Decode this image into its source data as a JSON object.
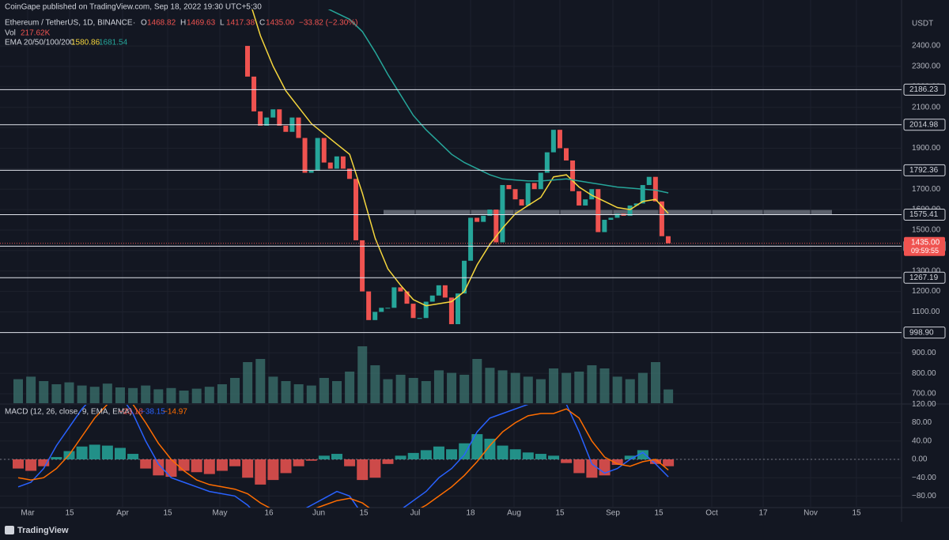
{
  "header": {
    "published": "CoinGape published on TradingView.com, Sep 18, 2022 19:30 UTC+5:30",
    "symbol": "Ethereum / TetherUS, 1D, BINANCE",
    "ohlc": [
      {
        "label": "O",
        "value": "1468.82"
      },
      {
        "label": "H",
        "value": "1469.63"
      },
      {
        "label": "L",
        "value": "1417.38"
      },
      {
        "label": "C",
        "value": "1435.00"
      }
    ],
    "change": "−33.82 (−2.30%)",
    "volume_label": "Vol",
    "volume_value": "217.62K",
    "ema_label": "EMA 20/50/100/200",
    "ema_values": [
      "1580.86",
      "1681.54"
    ]
  },
  "chart_data": {
    "type": "candlestick",
    "unit": "USDT",
    "ylim": [
      700,
      2578
    ],
    "yticks": [
      {
        "value": 700,
        "label": "700.00"
      },
      {
        "value": 800,
        "label": "800.00"
      },
      {
        "value": 900,
        "label": "900.00"
      },
      {
        "value": 1000,
        "label": "1000.00"
      },
      {
        "value": 1100,
        "label": "1100.00"
      },
      {
        "value": 1200,
        "label": "1200.00"
      },
      {
        "value": 1300,
        "label": "1300.00"
      },
      {
        "value": 1400,
        "label": "1400.00"
      },
      {
        "value": 1500,
        "label": "1500.00"
      },
      {
        "value": 1600,
        "label": "1600.00"
      },
      {
        "value": 1700,
        "label": "1700.00"
      },
      {
        "value": 1800,
        "label": "1800.00"
      },
      {
        "value": 1900,
        "label": "1900.00"
      },
      {
        "value": 2000,
        "label": "2000.00"
      },
      {
        "value": 2100,
        "label": "2100.00"
      },
      {
        "value": 2200,
        "label": "2200.00"
      },
      {
        "value": 2300,
        "label": "2300.00"
      },
      {
        "value": 2400,
        "label": "2400.00"
      }
    ],
    "levels": [
      2186.23,
      2014.98,
      1792.36,
      1575.41,
      1421.32,
      1267.19,
      {
        "value": 998.9,
        "label": "998.90"
      }
    ],
    "last_price": {
      "value": 1435,
      "label": "1435.00"
    },
    "countdown": "09:59:55",
    "up_color": "#26a69a",
    "down_color": "#ef5350",
    "open": [
      2400,
      2250,
      2080,
      2010,
      2050,
      2090,
      2010,
      1980,
      2050,
      1950,
      1780,
      1790,
      1950,
      1830,
      1800,
      1860,
      1800,
      1750,
      1450,
      1200,
      1060,
      1100,
      1120,
      1120,
      1220,
      1200,
      1140,
      1070,
      1070,
      1150,
      1180,
      1230,
      1170,
      1040,
      1190,
      1350,
      1560,
      1540,
      1570,
      1600,
      1440,
      1720,
      1700,
      1650,
      1620,
      1730,
      1700,
      1780,
      1880,
      1990,
      1900,
      1840,
      1690,
      1620,
      1650,
      1700,
      1490,
      1550,
      1560,
      1580,
      1570,
      1620,
      1630,
      1720,
      1760,
      1640,
      1470
    ],
    "close": [
      2250,
      2080,
      2010,
      2050,
      2090,
      2010,
      1980,
      2050,
      1950,
      1780,
      1790,
      1950,
      1830,
      1800,
      1860,
      1800,
      1750,
      1450,
      1200,
      1060,
      1100,
      1120,
      1120,
      1220,
      1200,
      1140,
      1070,
      1070,
      1150,
      1180,
      1230,
      1170,
      1040,
      1190,
      1350,
      1560,
      1540,
      1570,
      1600,
      1440,
      1720,
      1700,
      1650,
      1620,
      1730,
      1700,
      1780,
      1880,
      1990,
      1900,
      1840,
      1690,
      1620,
      1650,
      1700,
      1490,
      1550,
      1560,
      1580,
      1570,
      1620,
      1630,
      1720,
      1760,
      1640,
      1470,
      1435
    ],
    "x_labels": [
      "Mar",
      "15",
      "Apr",
      "15",
      "May",
      "16",
      "Jun",
      "15",
      "Jul",
      "18",
      "Aug",
      "15",
      "Sep",
      "15",
      "Oct",
      "17",
      "Nov",
      "15"
    ],
    "ema": [
      {
        "name": "EMA 20",
        "color": "#f5d63d",
        "values": [
          2900,
          2950,
          2900,
          2850,
          2850,
          2900,
          3000,
          3050,
          3100,
          3150,
          3200,
          3150,
          3100,
          3050,
          3000,
          2950,
          2900,
          2800,
          2650,
          2450,
          2300,
          2180,
          2100,
          2020,
          1970,
          1920,
          1870,
          1680,
          1460,
          1310,
          1230,
          1160,
          1130,
          1140,
          1150,
          1200,
          1330,
          1430,
          1510,
          1580,
          1620,
          1660,
          1760,
          1770,
          1710,
          1670,
          1640,
          1610,
          1600,
          1640,
          1650,
          1580.86
        ]
      },
      {
        "name": "EMA 50",
        "color": "#26a69a",
        "values": [
          3000,
          3000,
          2980,
          2970,
          2960,
          2960,
          2970,
          2980,
          2990,
          3000,
          3000,
          2990,
          2980,
          2970,
          2950,
          2930,
          2900,
          2870,
          2830,
          2780,
          2740,
          2700,
          2660,
          2620,
          2590,
          2560,
          2530,
          2470,
          2370,
          2260,
          2160,
          2060,
          1990,
          1930,
          1870,
          1830,
          1800,
          1770,
          1750,
          1745,
          1740,
          1740,
          1745,
          1750,
          1740,
          1730,
          1720,
          1710,
          1705,
          1700,
          1695,
          1681.54
        ]
      }
    ],
    "volume": {
      "color": "#3a6e6a",
      "max": 1000,
      "values": [
        380,
        420,
        350,
        300,
        330,
        280,
        260,
        310,
        250,
        240,
        280,
        220,
        240,
        200,
        230,
        260,
        300,
        400,
        650,
        700,
        420,
        350,
        300,
        280,
        400,
        350,
        500,
        900,
        600,
        380,
        450,
        400,
        350,
        520,
        480,
        450,
        700,
        560,
        520,
        480,
        420,
        380,
        550,
        480,
        500,
        600,
        550,
        420,
        380,
        480,
        650,
        217.62
      ]
    },
    "macd": {
      "label": "MACD (12, 26, close, 9, EMA, EMA)",
      "value_labels": [
        "−23.18",
        "−38.15",
        "−14.97"
      ],
      "ylim": [
        -120,
        120
      ],
      "yticks": [
        {
          "value": 120,
          "label": "120.00"
        },
        {
          "value": 80,
          "label": "80.00"
        },
        {
          "value": 40,
          "label": "40.00"
        },
        {
          "value": 0,
          "label": "0.00"
        },
        {
          "value": -40,
          "label": "−40.00"
        },
        {
          "value": -80,
          "label": "−80.00"
        }
      ],
      "histogram": {
        "pos_color": "#26a69a",
        "neg_color": "#ef5350",
        "values": [
          -20,
          -25,
          -15,
          5,
          18,
          28,
          32,
          30,
          25,
          12,
          -20,
          -35,
          -38,
          -25,
          -28,
          -32,
          -25,
          -15,
          -40,
          -55,
          -45,
          -30,
          -15,
          -3,
          8,
          12,
          -15,
          -45,
          -40,
          -10,
          8,
          14,
          20,
          28,
          22,
          35,
          55,
          45,
          30,
          22,
          15,
          12,
          8,
          -8,
          -30,
          -40,
          -35,
          -12,
          8,
          20,
          -10,
          -14.97
        ]
      },
      "series": [
        {
          "name": "MACD",
          "color": "#2962ff",
          "values": [
            -60,
            -50,
            -20,
            30,
            70,
            110,
            140,
            150,
            140,
            100,
            40,
            -10,
            -40,
            -50,
            -60,
            -70,
            -75,
            -80,
            -100,
            -130,
            -140,
            -130,
            -115,
            -100,
            -85,
            -70,
            -80,
            -120,
            -140,
            -130,
            -110,
            -90,
            -70,
            -40,
            -20,
            10,
            60,
            90,
            100,
            110,
            120,
            130,
            140,
            120,
            60,
            -10,
            -30,
            -20,
            0,
            15,
            -10,
            -38.15
          ]
        },
        {
          "name": "Signal",
          "color": "#ff6d00",
          "values": [
            -40,
            -45,
            -40,
            -20,
            10,
            50,
            90,
            120,
            135,
            120,
            80,
            35,
            0,
            -25,
            -45,
            -55,
            -60,
            -65,
            -75,
            -95,
            -110,
            -115,
            -115,
            -110,
            -100,
            -90,
            -85,
            -95,
            -115,
            -125,
            -125,
            -115,
            -100,
            -80,
            -60,
            -35,
            -5,
            30,
            60,
            80,
            95,
            100,
            100,
            110,
            90,
            40,
            5,
            -10,
            -15,
            -5,
            0,
            -23.18
          ]
        }
      ]
    }
  },
  "footer": {
    "brand": "TradingView"
  }
}
